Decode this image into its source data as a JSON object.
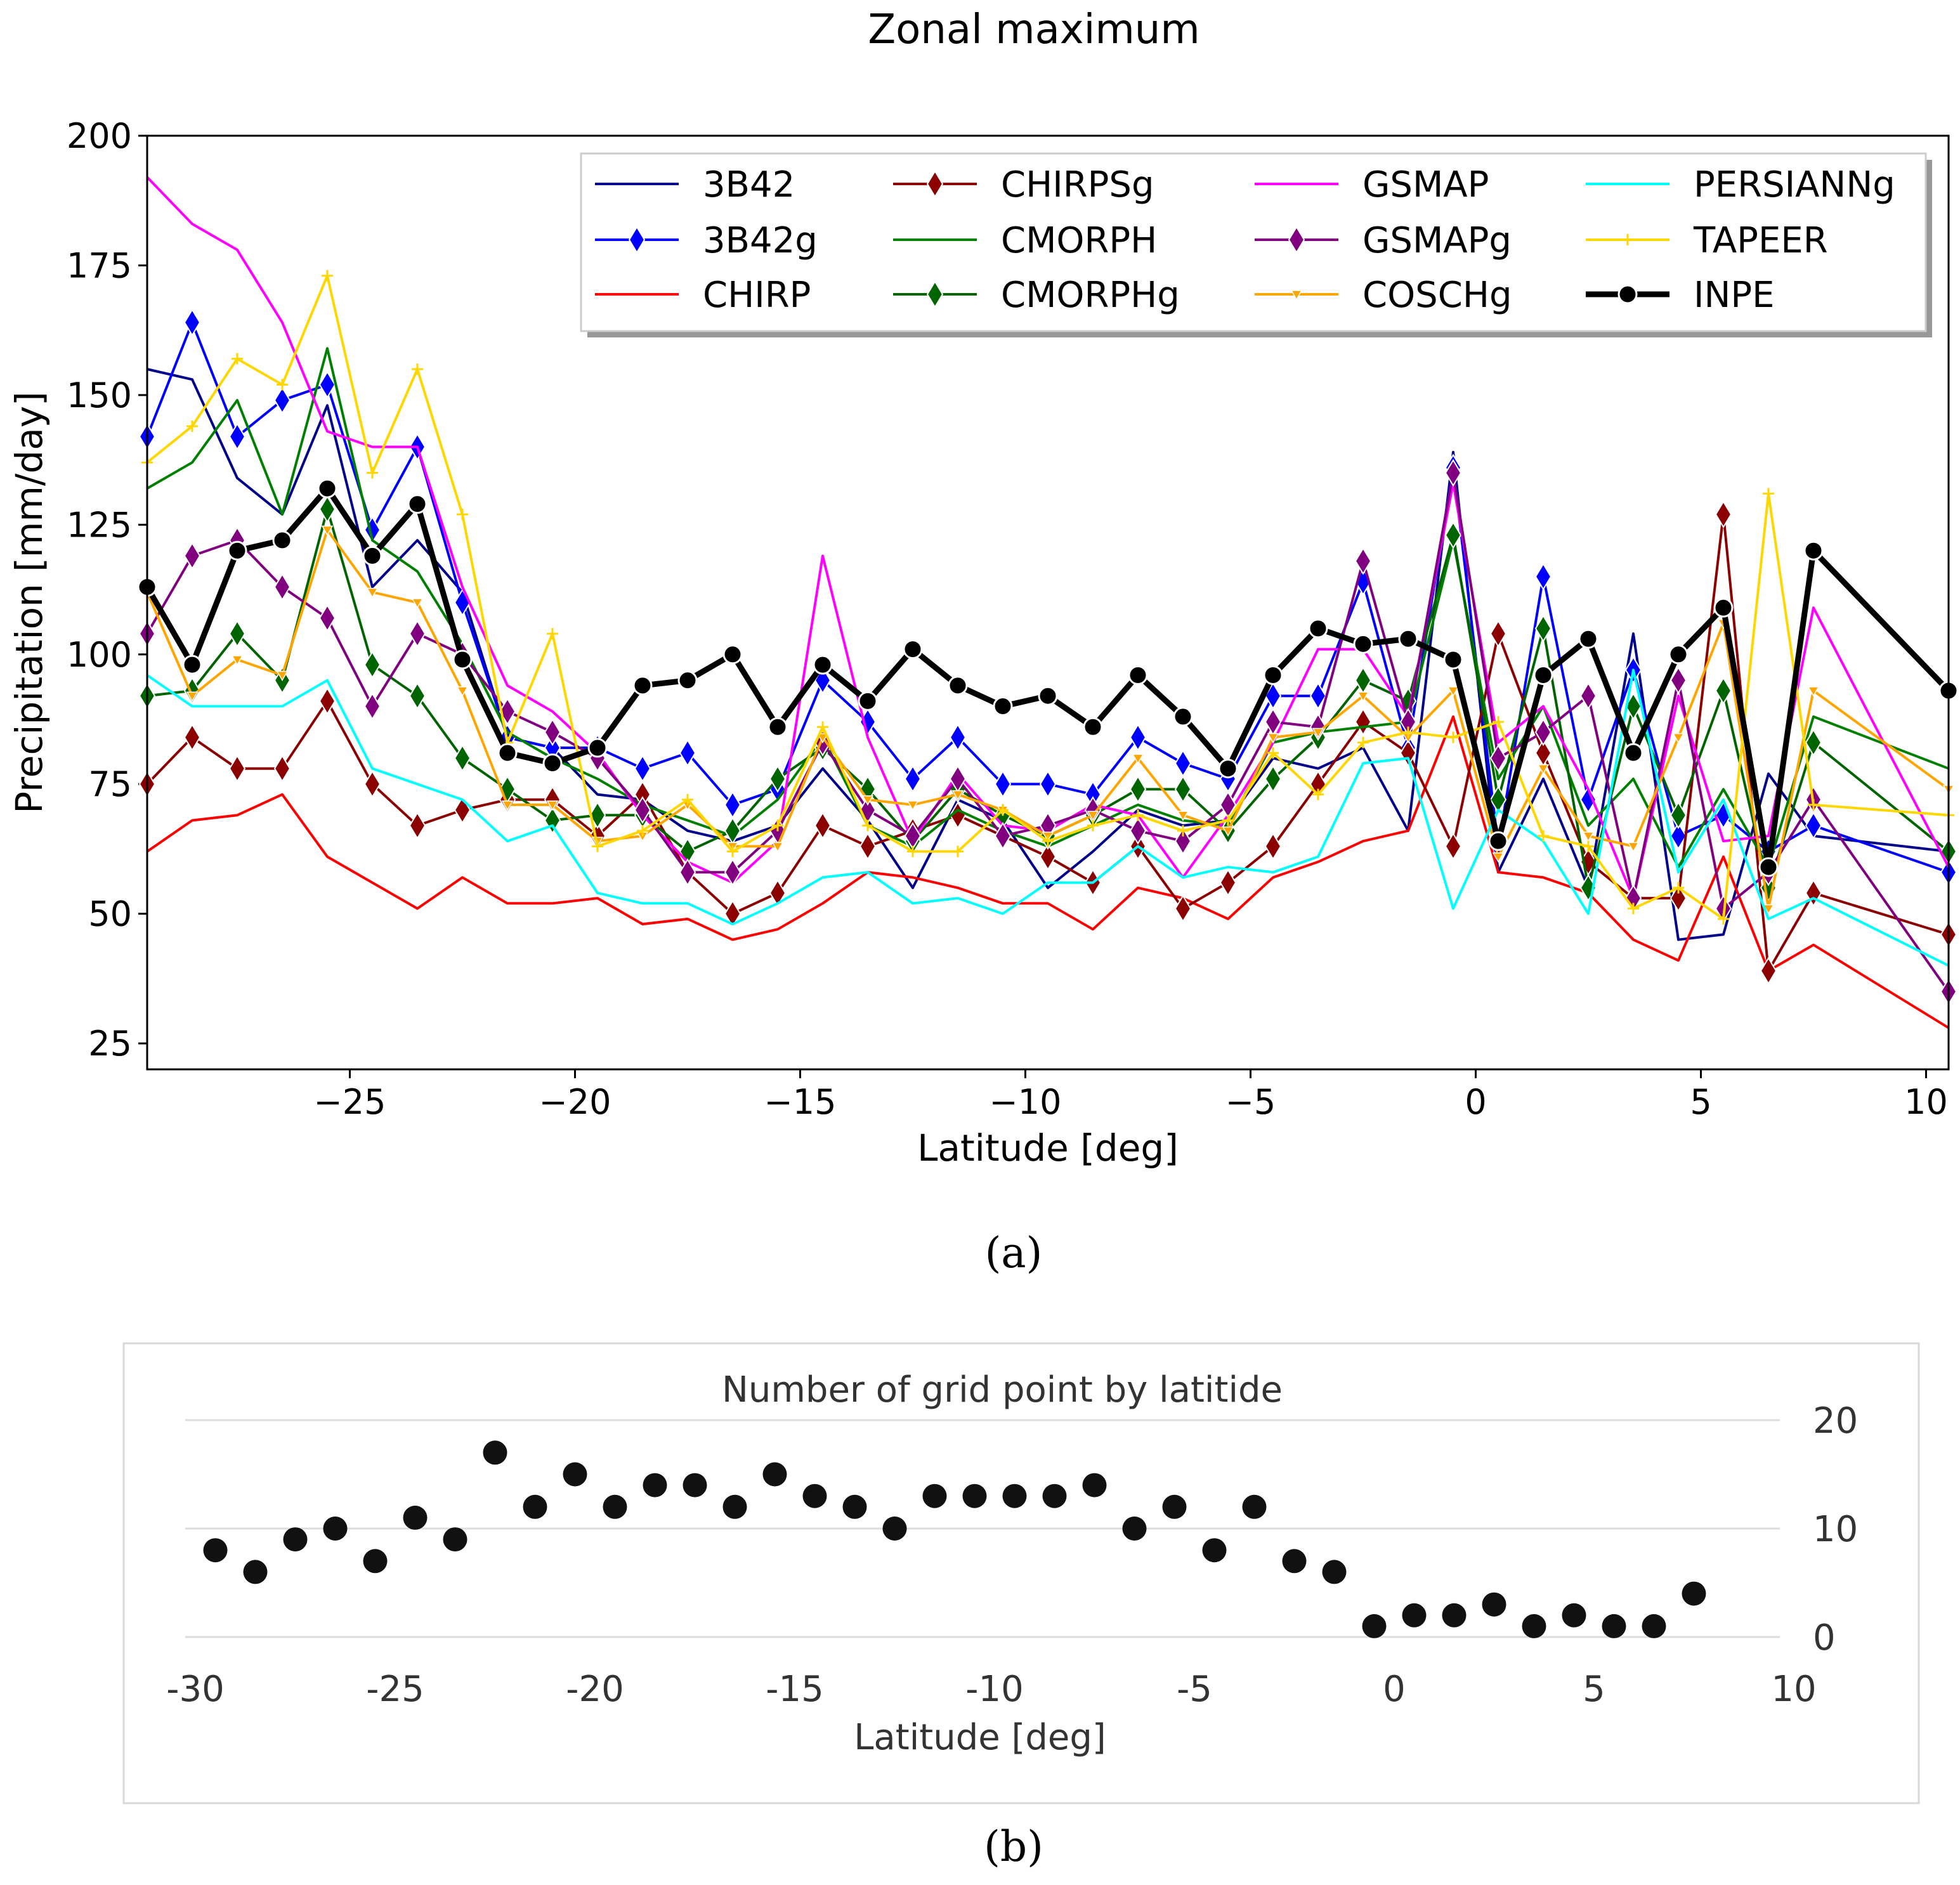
{
  "captions": [
    "(a)",
    "(b)"
  ],
  "chart_data": [
    {
      "type": "line",
      "title": "Zonal maximum",
      "xlabel": "Latitude [deg]",
      "ylabel": "Precipitation [mm/day]",
      "xlim": [
        -29.5,
        10.5
      ],
      "ylim": [
        20,
        200
      ],
      "xticks": [
        -25,
        -20,
        -15,
        -10,
        -5,
        0,
        5,
        10
      ],
      "yticks": [
        25,
        50,
        75,
        100,
        125,
        150,
        175,
        200
      ],
      "x": [
        -29.5,
        -28.5,
        -27.5,
        -26.5,
        -25.5,
        -24.5,
        -23.5,
        -22.5,
        -21.5,
        -20.5,
        -19.5,
        -18.5,
        -17.5,
        -16.5,
        -15.5,
        -14.5,
        -13.5,
        -12.5,
        -11.5,
        -10.5,
        -9.5,
        -8.5,
        -7.5,
        -6.5,
        -5.5,
        -4.5,
        -3.5,
        -2.5,
        -1.5,
        -0.5,
        0.5,
        1.5,
        2.5,
        3.5,
        4.5,
        5.5,
        6.5,
        7.5,
        10.5
      ],
      "series": [
        {
          "name": "3B42",
          "color": "#00008b",
          "marker": "none",
          "values": [
            155,
            153,
            134,
            127,
            148,
            113,
            122,
            112,
            84,
            82,
            73,
            72,
            66,
            64,
            67,
            78,
            68,
            55,
            72,
            68,
            55,
            62,
            70,
            67,
            68,
            80,
            78,
            82,
            66,
            139,
            58,
            76,
            55,
            104,
            45,
            46,
            77,
            65,
            62
          ]
        },
        {
          "name": "3B42g",
          "color": "#0000ff",
          "marker": "diamond",
          "values": [
            142,
            164,
            142,
            149,
            152,
            124,
            140,
            110,
            84,
            82,
            82,
            78,
            81,
            71,
            74,
            95,
            87,
            76,
            84,
            75,
            75,
            73,
            84,
            79,
            76,
            92,
            92,
            114,
            82,
            136,
            63,
            115,
            72,
            97,
            65,
            69,
            62,
            67,
            58
          ]
        },
        {
          "name": "CHIRP",
          "color": "#ff0000",
          "marker": "none",
          "values": [
            62,
            68,
            69,
            73,
            61,
            56,
            51,
            57,
            52,
            52,
            53,
            48,
            49,
            45,
            47,
            52,
            58,
            57,
            55,
            52,
            52,
            47,
            55,
            53,
            49,
            57,
            60,
            64,
            66,
            88,
            58,
            57,
            54,
            45,
            41,
            61,
            39,
            44,
            28
          ]
        },
        {
          "name": "CHIRPSg",
          "color": "#8b0000",
          "marker": "diamond",
          "values": [
            75,
            84,
            78,
            78,
            91,
            75,
            67,
            70,
            72,
            72,
            65,
            73,
            58,
            50,
            54,
            67,
            63,
            66,
            69,
            65,
            61,
            56,
            63,
            51,
            56,
            63,
            75,
            87,
            81,
            63,
            104,
            81,
            60,
            53,
            53,
            127,
            39,
            54,
            46
          ]
        },
        {
          "name": "CMORPH",
          "color": "#008000",
          "marker": "none",
          "values": [
            132,
            137,
            149,
            127,
            159,
            122,
            116,
            102,
            85,
            80,
            76,
            71,
            68,
            65,
            72,
            84,
            67,
            63,
            70,
            66,
            63,
            67,
            71,
            68,
            67,
            83,
            85,
            86,
            87,
            122,
            76,
            90,
            67,
            76,
            59,
            74,
            59,
            88,
            78
          ]
        },
        {
          "name": "CMORPHg",
          "color": "#006400",
          "marker": "diamond",
          "values": [
            92,
            93,
            104,
            95,
            128,
            98,
            92,
            80,
            74,
            68,
            69,
            69,
            62,
            66,
            76,
            82,
            74,
            64,
            74,
            69,
            65,
            69,
            74,
            74,
            66,
            76,
            84,
            95,
            91,
            123,
            72,
            105,
            55,
            90,
            69,
            93,
            55,
            83,
            62
          ]
        },
        {
          "name": "GSMAP",
          "color": "#ff00ff",
          "marker": "none",
          "values": [
            192,
            183,
            178,
            164,
            143,
            140,
            140,
            113,
            94,
            89,
            81,
            69,
            60,
            56,
            64,
            119,
            84,
            64,
            77,
            67,
            66,
            71,
            69,
            57,
            69,
            83,
            101,
            101,
            88,
            133,
            83,
            90,
            74,
            53,
            92,
            64,
            65,
            109,
            59
          ]
        },
        {
          "name": "GSMAPg",
          "color": "#800080",
          "marker": "diamond",
          "values": [
            104,
            119,
            122,
            113,
            107,
            90,
            104,
            100,
            89,
            85,
            80,
            70,
            58,
            58,
            66,
            83,
            70,
            65,
            76,
            65,
            67,
            70,
            66,
            64,
            71,
            87,
            86,
            118,
            87,
            135,
            80,
            85,
            92,
            53,
            95,
            51,
            58,
            72,
            35
          ]
        },
        {
          "name": "COSCHg",
          "color": "#ffa500",
          "marker": "triangle-down",
          "values": [
            112,
            92,
            99,
            96,
            124,
            112,
            110,
            93,
            71,
            71,
            64,
            65,
            71,
            63,
            63,
            84,
            72,
            71,
            73,
            70,
            65,
            69,
            80,
            69,
            66,
            84,
            85,
            92,
            84,
            93,
            61,
            78,
            65,
            63,
            84,
            106,
            51,
            93,
            74
          ]
        },
        {
          "name": "PERSIANNg",
          "color": "#00ffff",
          "marker": "none",
          "values": [
            96,
            90,
            90,
            90,
            95,
            78,
            75,
            72,
            64,
            67,
            54,
            52,
            52,
            48,
            52,
            57,
            58,
            52,
            53,
            50,
            56,
            56,
            63,
            57,
            59,
            58,
            61,
            79,
            80,
            51,
            70,
            64,
            50,
            97,
            58,
            72,
            49,
            53,
            40
          ]
        },
        {
          "name": "TAPEER",
          "color": "#ffd700",
          "marker": "plus",
          "values": [
            137,
            144,
            157,
            152,
            173,
            135,
            155,
            127,
            83,
            104,
            63,
            66,
            72,
            62,
            67,
            86,
            67,
            62,
            62,
            70,
            64,
            67,
            69,
            66,
            68,
            81,
            73,
            83,
            85,
            84,
            87,
            65,
            63,
            51,
            55,
            49,
            131,
            71,
            69
          ]
        },
        {
          "name": "INPE",
          "color": "#000000",
          "marker": "circle",
          "values": [
            113,
            98,
            120,
            122,
            132,
            119,
            129,
            99,
            81,
            79,
            82,
            94,
            95,
            100,
            86,
            98,
            91,
            101,
            94,
            90,
            92,
            86,
            96,
            88,
            78,
            96,
            105,
            102,
            103,
            99,
            64,
            96,
            103,
            81,
            100,
            109,
            59,
            120,
            93
          ]
        }
      ]
    },
    {
      "type": "scatter",
      "title": "Number of grid point by latitide",
      "xlabel": "Latitude [deg]",
      "xlim": [
        -30,
        10
      ],
      "ylim": [
        0,
        20
      ],
      "xticks": [
        "-30",
        "-25",
        "-20",
        "-15",
        "-10",
        "-5",
        "0",
        "5",
        "10"
      ],
      "yticks": [
        "0",
        "10",
        "20"
      ],
      "x": [
        -29.5,
        -28.5,
        -27.5,
        -26.5,
        -25.5,
        -24.5,
        -23.5,
        -22.5,
        -21.5,
        -20.5,
        -19.5,
        -18.5,
        -17.5,
        -16.5,
        -15.5,
        -14.5,
        -13.5,
        -12.5,
        -11.5,
        -10.5,
        -9.5,
        -8.5,
        -7.5,
        -6.5,
        -5.5,
        -4.5,
        -3.5,
        -2.5,
        -1.5,
        -0.5,
        0.5,
        1.5,
        2.5,
        3.5,
        4.5,
        5.5,
        6.5,
        7.5
      ],
      "values": [
        8,
        6,
        9,
        10,
        7,
        11,
        9,
        17,
        12,
        15,
        12,
        14,
        14,
        12,
        15,
        13,
        12,
        10,
        13,
        13,
        13,
        13,
        14,
        10,
        12,
        8,
        12,
        7,
        6,
        1,
        2,
        2,
        3,
        1,
        2,
        1,
        1,
        4
      ]
    }
  ]
}
